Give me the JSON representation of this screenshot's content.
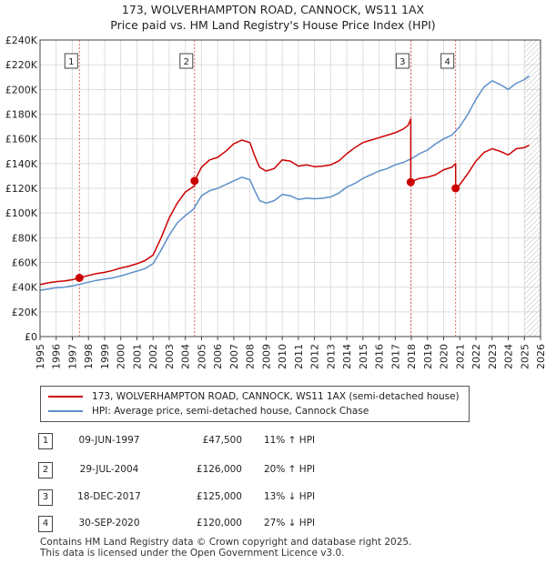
{
  "title_line1": "173, WOLVERHAMPTON ROAD, CANNOCK, WS11 1AX",
  "title_line2": "Price paid vs. HM Land Registry's House Price Index (HPI)",
  "chart_data": {
    "type": "line",
    "title": "173, WOLVERHAMPTON ROAD, CANNOCK, WS11 1AX — Price paid vs. HM Land Registry's House Price Index (HPI)",
    "xlim": [
      1995,
      2026
    ],
    "ylim": [
      0,
      240000
    ],
    "x_ticks": [
      "1995",
      "1996",
      "1997",
      "1998",
      "1999",
      "2000",
      "2001",
      "2002",
      "2003",
      "2004",
      "2005",
      "2006",
      "2007",
      "2008",
      "2009",
      "2010",
      "2011",
      "2012",
      "2013",
      "2014",
      "2015",
      "2016",
      "2017",
      "2018",
      "2019",
      "2020",
      "2021",
      "2022",
      "2023",
      "2024",
      "2025",
      "2026"
    ],
    "y_ticks": [
      0,
      20000,
      40000,
      60000,
      80000,
      100000,
      120000,
      140000,
      160000,
      180000,
      200000,
      220000,
      240000
    ],
    "y_tick_labels": [
      "£0",
      "£20K",
      "£40K",
      "£60K",
      "£80K",
      "£100K",
      "£120K",
      "£140K",
      "£160K",
      "£180K",
      "£200K",
      "£220K",
      "£240K"
    ],
    "grid": true,
    "series": [
      {
        "name": "173, WOLVERHAMPTON ROAD, CANNOCK, WS11 1AX (semi-detached house)",
        "color": "#cc0000",
        "x": [
          1995,
          1995.5,
          1996,
          1996.5,
          1997,
          1997.44,
          1997.44,
          1998,
          1998.5,
          1999,
          1999.5,
          2000,
          2000.5,
          2001,
          2001.5,
          2002,
          2002.5,
          2003,
          2003.5,
          2004,
          2004.57,
          2004.57,
          2005,
          2005.5,
          2006,
          2006.5,
          2007,
          2007.5,
          2008,
          2008.3,
          2008.6,
          2009,
          2009.5,
          2010,
          2010.5,
          2011,
          2011.5,
          2012,
          2012.5,
          2013,
          2013.5,
          2014,
          2014.5,
          2015,
          2015.5,
          2016,
          2016.5,
          2017,
          2017.5,
          2017.8,
          2017.96,
          2017.96,
          2018.5,
          2019,
          2019.5,
          2020,
          2020.5,
          2020.74,
          2020.74,
          2021,
          2021.5,
          2022,
          2022.5,
          2023,
          2023.5,
          2024,
          2024.5,
          2025,
          2025.3
        ],
        "y": [
          42000,
          43500,
          44500,
          45000,
          46000,
          47500,
          47500,
          49500,
          51000,
          52000,
          53500,
          55500,
          57000,
          59000,
          61500,
          66000,
          80000,
          96000,
          108000,
          117000,
          122000,
          126000,
          137000,
          143000,
          145000,
          150000,
          156000,
          159000,
          157000,
          146000,
          137000,
          134000,
          136000,
          143000,
          142000,
          138000,
          139000,
          137500,
          138000,
          139000,
          142000,
          148000,
          153000,
          157000,
          159000,
          161000,
          163000,
          165000,
          168000,
          171000,
          176000,
          125000,
          128000,
          129000,
          131000,
          135000,
          137000,
          140000,
          120000,
          123000,
          132000,
          142000,
          149000,
          152000,
          150000,
          147000,
          152000,
          153000,
          155000
        ]
      },
      {
        "name": "HPI: Average price, semi-detached house, Cannock Chase",
        "color": "#5b8fc9",
        "x": [
          1995,
          1995.5,
          1996,
          1996.5,
          1997,
          1997.5,
          1998,
          1998.5,
          1999,
          1999.5,
          2000,
          2000.5,
          2001,
          2001.5,
          2002,
          2002.5,
          2003,
          2003.5,
          2004,
          2004.5,
          2005,
          2005.5,
          2006,
          2006.5,
          2007,
          2007.5,
          2008,
          2008.3,
          2008.6,
          2009,
          2009.5,
          2010,
          2010.5,
          2011,
          2011.5,
          2012,
          2012.5,
          2013,
          2013.5,
          2014,
          2014.5,
          2015,
          2015.5,
          2016,
          2016.5,
          2017,
          2017.5,
          2018,
          2018.5,
          2019,
          2019.5,
          2020,
          2020.5,
          2021,
          2021.5,
          2022,
          2022.5,
          2023,
          2023.5,
          2024,
          2024.5,
          2025,
          2025.3
        ],
        "y": [
          37500,
          38500,
          39500,
          40000,
          41000,
          42500,
          44000,
          45500,
          46500,
          47500,
          49000,
          51000,
          53000,
          55000,
          59000,
          70000,
          82000,
          92000,
          98000,
          103000,
          114000,
          118000,
          120000,
          123000,
          126000,
          129000,
          127000,
          118000,
          110000,
          108000,
          110000,
          115000,
          114000,
          111000,
          112000,
          111500,
          112000,
          113000,
          116000,
          121000,
          124000,
          128000,
          131000,
          134000,
          136000,
          139000,
          141000,
          144000,
          148000,
          151000,
          156000,
          160000,
          163000,
          170000,
          180000,
          192000,
          202000,
          207000,
          204000,
          200000,
          205000,
          208000,
          211000
        ]
      }
    ],
    "sales": [
      {
        "label": "1",
        "x": 1997.44,
        "y": 47500
      },
      {
        "label": "2",
        "x": 2004.57,
        "y": 126000
      },
      {
        "label": "3",
        "x": 2017.96,
        "y": 125000
      },
      {
        "label": "4",
        "x": 2020.74,
        "y": 120000
      }
    ],
    "hatch_from": 2025.0
  },
  "legend": {
    "property": "173, WOLVERHAMPTON ROAD, CANNOCK, WS11 1AX (semi-detached house)",
    "hpi": "HPI: Average price, semi-detached house, Cannock Chase"
  },
  "transactions": [
    {
      "num": "1",
      "date": "09-JUN-1997",
      "price": "£47,500",
      "hpi": "11% ↑ HPI"
    },
    {
      "num": "2",
      "date": "29-JUL-2004",
      "price": "£126,000",
      "hpi": "20% ↑ HPI"
    },
    {
      "num": "3",
      "date": "18-DEC-2017",
      "price": "£125,000",
      "hpi": "13% ↓ HPI"
    },
    {
      "num": "4",
      "date": "30-SEP-2020",
      "price": "£120,000",
      "hpi": "27% ↓ HPI"
    }
  ],
  "footer": {
    "line1": "Contains HM Land Registry data © Crown copyright and database right 2025.",
    "line2": "This data is licensed under the Open Government Licence v3.0."
  }
}
